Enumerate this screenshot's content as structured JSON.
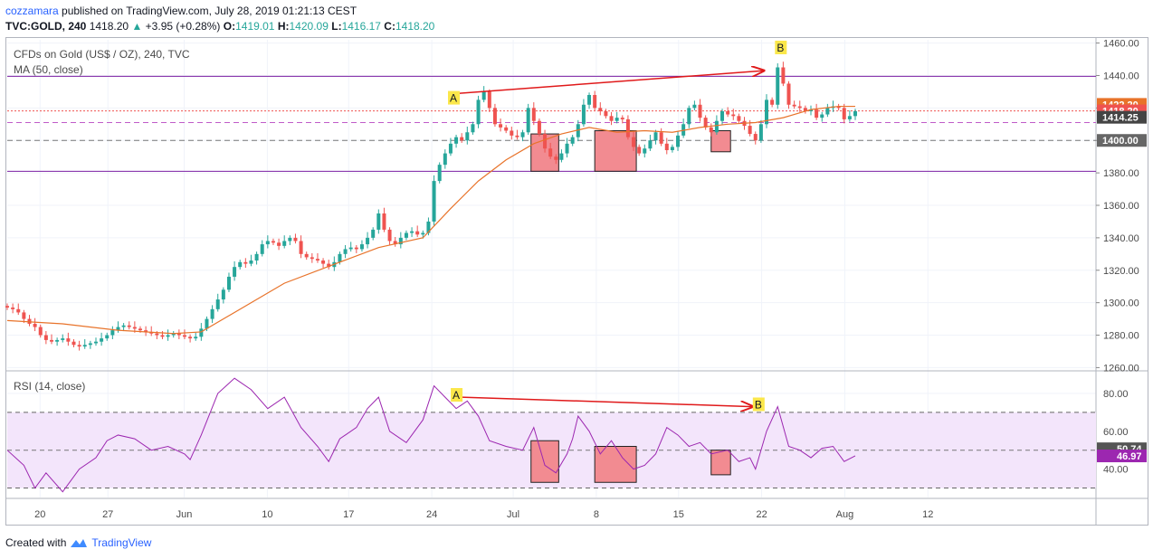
{
  "header": {
    "author": "cozzamara",
    "published_text": "published on TradingView.com, July 28, 2019 01:21:13 CEST",
    "symbol_line": "TVC:GOLD, 240",
    "last": "1418.20",
    "change": "+3.95 (+0.28%)",
    "o_label": "O:",
    "o": "1419.01",
    "h_label": "H:",
    "h": "1420.09",
    "l_label": "L:",
    "l": "1416.17",
    "c_label": "C:",
    "c": "1418.20"
  },
  "price_pane": {
    "title": "CFDs on Gold (US$ / OZ), 240, TVC",
    "indicator": "MA (50, close)"
  },
  "rsi_pane": {
    "title": "RSI (14, close)"
  },
  "footer": {
    "created_with": "Created with",
    "brand": "TradingView"
  },
  "colors": {
    "up": "#26a69a",
    "down": "#ef5350",
    "ma": "#e8732a",
    "rsi": "#9c27b0",
    "rsi_band": "#f3e5fb",
    "arrow": "#e0191a",
    "box_fill": "#f28b91",
    "label_bg": "#fbe74a",
    "purple_line": "#7b1fa2"
  },
  "chart_data": [
    {
      "type": "candlestick",
      "title": "CFDs on Gold (US$ / OZ), 240, TVC",
      "ylim": [
        1258,
        1462
      ],
      "y_ticks": [
        "1460.00",
        "1440.00",
        "1420.00",
        "1400.00",
        "1380.00",
        "1360.00",
        "1340.00",
        "1320.00",
        "1300.00",
        "1280.00",
        "1260.00"
      ],
      "x_ticks": [
        "20",
        "27",
        "Jun",
        "10",
        "17",
        "24",
        "Jul",
        "8",
        "15",
        "22",
        "Aug",
        "12"
      ],
      "price_labels": [
        {
          "value": 1422.2,
          "text": "1422.20",
          "color": "#e8732a"
        },
        {
          "value": 1418.2,
          "text": "1418.20",
          "color": "#ef5350"
        },
        {
          "value": 1414.25,
          "text": "1414.25",
          "color": "#444444"
        },
        {
          "value": 1400.0,
          "text": "1400.00",
          "color": "#666666"
        }
      ],
      "horizontal_lines": [
        1439.5,
        1381.0,
        1411.0,
        1400.0
      ],
      "close_series": [
        [
          0,
          1297
        ],
        [
          1,
          1296
        ],
        [
          2,
          1294
        ],
        [
          3,
          1290
        ],
        [
          4,
          1287
        ],
        [
          5,
          1285
        ],
        [
          6,
          1280
        ],
        [
          7,
          1277
        ],
        [
          8,
          1276
        ],
        [
          9,
          1277
        ],
        [
          10,
          1278
        ],
        [
          11,
          1276
        ],
        [
          12,
          1274
        ],
        [
          13,
          1273
        ],
        [
          14,
          1274
        ],
        [
          15,
          1275
        ],
        [
          16,
          1276
        ],
        [
          17,
          1278
        ],
        [
          18,
          1280
        ],
        [
          19,
          1283
        ],
        [
          20,
          1285
        ],
        [
          21,
          1286
        ],
        [
          22,
          1285
        ],
        [
          23,
          1284
        ],
        [
          24,
          1283
        ],
        [
          25,
          1282
        ],
        [
          26,
          1281
        ],
        [
          27,
          1280
        ],
        [
          28,
          1279
        ],
        [
          29,
          1280
        ],
        [
          30,
          1281
        ],
        [
          31,
          1280
        ],
        [
          32,
          1279
        ],
        [
          33,
          1278
        ],
        [
          34,
          1279
        ],
        [
          35,
          1284
        ],
        [
          36,
          1290
        ],
        [
          37,
          1296
        ],
        [
          38,
          1302
        ],
        [
          39,
          1308
        ],
        [
          40,
          1316
        ],
        [
          41,
          1322
        ],
        [
          42,
          1325
        ],
        [
          43,
          1324
        ],
        [
          44,
          1326
        ],
        [
          45,
          1330
        ],
        [
          46,
          1336
        ],
        [
          47,
          1338
        ],
        [
          48,
          1337
        ],
        [
          49,
          1335
        ],
        [
          50,
          1338
        ],
        [
          51,
          1340
        ],
        [
          52,
          1338
        ],
        [
          53,
          1330
        ],
        [
          54,
          1328
        ],
        [
          55,
          1327
        ],
        [
          56,
          1326
        ],
        [
          57,
          1324
        ],
        [
          58,
          1322
        ],
        [
          59,
          1325
        ],
        [
          60,
          1330
        ],
        [
          61,
          1333
        ],
        [
          62,
          1334
        ],
        [
          63,
          1333
        ],
        [
          64,
          1336
        ],
        [
          65,
          1340
        ],
        [
          66,
          1345
        ],
        [
          67,
          1355
        ],
        [
          68,
          1345
        ],
        [
          69,
          1338
        ],
        [
          70,
          1336
        ],
        [
          71,
          1340
        ],
        [
          72,
          1343
        ],
        [
          73,
          1344
        ],
        [
          74,
          1342
        ],
        [
          75,
          1343
        ],
        [
          76,
          1350
        ],
        [
          77,
          1375
        ],
        [
          78,
          1385
        ],
        [
          79,
          1392
        ],
        [
          80,
          1398
        ],
        [
          81,
          1402
        ],
        [
          82,
          1400
        ],
        [
          83,
          1405
        ],
        [
          84,
          1410
        ],
        [
          85,
          1425
        ],
        [
          86,
          1430
        ],
        [
          87,
          1420
        ],
        [
          88,
          1410
        ],
        [
          89,
          1408
        ],
        [
          90,
          1406
        ],
        [
          91,
          1403
        ],
        [
          92,
          1402
        ],
        [
          93,
          1405
        ],
        [
          94,
          1420
        ],
        [
          95,
          1412
        ],
        [
          96,
          1404
        ],
        [
          97,
          1395
        ],
        [
          98,
          1390
        ],
        [
          99,
          1388
        ],
        [
          100,
          1392
        ],
        [
          101,
          1398
        ],
        [
          102,
          1402
        ],
        [
          103,
          1410
        ],
        [
          104,
          1422
        ],
        [
          105,
          1428
        ],
        [
          106,
          1420
        ],
        [
          107,
          1418
        ],
        [
          108,
          1415
        ],
        [
          109,
          1412
        ],
        [
          110,
          1414
        ],
        [
          111,
          1413
        ],
        [
          112,
          1402
        ],
        [
          113,
          1396
        ],
        [
          114,
          1392
        ],
        [
          115,
          1395
        ],
        [
          116,
          1400
        ],
        [
          117,
          1405
        ],
        [
          118,
          1398
        ],
        [
          119,
          1394
        ],
        [
          120,
          1396
        ],
        [
          121,
          1403
        ],
        [
          122,
          1410
        ],
        [
          123,
          1420
        ],
        [
          124,
          1422
        ],
        [
          125,
          1414
        ],
        [
          126,
          1408
        ],
        [
          127,
          1405
        ],
        [
          128,
          1412
        ],
        [
          129,
          1418
        ],
        [
          130,
          1416
        ],
        [
          131,
          1415
        ],
        [
          132,
          1412
        ],
        [
          133,
          1409
        ],
        [
          134,
          1404
        ],
        [
          135,
          1400
        ],
        [
          136,
          1410
        ],
        [
          137,
          1425
        ],
        [
          138,
          1422
        ],
        [
          139,
          1445
        ],
        [
          140,
          1435
        ],
        [
          141,
          1422
        ],
        [
          142,
          1421
        ],
        [
          143,
          1420
        ],
        [
          144,
          1418
        ],
        [
          145,
          1419
        ],
        [
          146,
          1414
        ],
        [
          147,
          1416
        ],
        [
          148,
          1420
        ],
        [
          149,
          1421
        ],
        [
          150,
          1420
        ],
        [
          151,
          1413
        ],
        [
          152,
          1415
        ],
        [
          153,
          1418
        ]
      ],
      "ma_series": [
        [
          0,
          1289
        ],
        [
          10,
          1287
        ],
        [
          20,
          1283
        ],
        [
          30,
          1281
        ],
        [
          35,
          1282
        ],
        [
          40,
          1292
        ],
        [
          50,
          1312
        ],
        [
          60,
          1325
        ],
        [
          67,
          1334
        ],
        [
          75,
          1340
        ],
        [
          80,
          1358
        ],
        [
          85,
          1375
        ],
        [
          90,
          1388
        ],
        [
          95,
          1398
        ],
        [
          100,
          1404
        ],
        [
          105,
          1408
        ],
        [
          110,
          1405
        ],
        [
          115,
          1406
        ],
        [
          120,
          1405
        ],
        [
          125,
          1408
        ],
        [
          130,
          1410
        ],
        [
          135,
          1411
        ],
        [
          140,
          1414
        ],
        [
          145,
          1419
        ],
        [
          150,
          1421
        ],
        [
          153,
          1421
        ]
      ],
      "annotations": [
        {
          "text": "A",
          "x": 80.5,
          "y": 1426
        },
        {
          "text": "B",
          "x": 139.5,
          "y": 1457
        }
      ]
    },
    {
      "type": "line",
      "title": "RSI (14, close)",
      "ylim": [
        25,
        90
      ],
      "y_ticks": [
        "80.00",
        "60.00",
        "40.00"
      ],
      "bands": [
        70,
        30
      ],
      "midline": 50,
      "value_labels": [
        {
          "value": 50.74,
          "text": "50.74"
        },
        {
          "value": 46.97,
          "text": "46.97"
        }
      ],
      "series": [
        [
          0,
          50
        ],
        [
          3,
          42
        ],
        [
          5,
          30
        ],
        [
          7,
          38
        ],
        [
          10,
          28
        ],
        [
          13,
          40
        ],
        [
          16,
          46
        ],
        [
          18,
          55
        ],
        [
          20,
          58
        ],
        [
          23,
          56
        ],
        [
          26,
          50
        ],
        [
          29,
          52
        ],
        [
          32,
          48
        ],
        [
          33,
          45
        ],
        [
          35,
          58
        ],
        [
          38,
          80
        ],
        [
          41,
          88
        ],
        [
          44,
          82
        ],
        [
          47,
          72
        ],
        [
          50,
          78
        ],
        [
          53,
          62
        ],
        [
          56,
          52
        ],
        [
          58,
          44
        ],
        [
          60,
          56
        ],
        [
          63,
          62
        ],
        [
          65,
          72
        ],
        [
          67,
          78
        ],
        [
          69,
          60
        ],
        [
          72,
          54
        ],
        [
          75,
          66
        ],
        [
          77,
          84
        ],
        [
          79,
          78
        ],
        [
          81,
          72
        ],
        [
          83,
          76
        ],
        [
          85,
          68
        ],
        [
          87,
          55
        ],
        [
          90,
          52
        ],
        [
          93,
          50
        ],
        [
          95,
          62
        ],
        [
          97,
          42
        ],
        [
          99,
          38
        ],
        [
          101,
          48
        ],
        [
          102,
          56
        ],
        [
          103,
          68
        ],
        [
          105,
          60
        ],
        [
          107,
          48
        ],
        [
          109,
          55
        ],
        [
          111,
          46
        ],
        [
          113,
          40
        ],
        [
          115,
          42
        ],
        [
          117,
          48
        ],
        [
          119,
          62
        ],
        [
          121,
          58
        ],
        [
          123,
          52
        ],
        [
          125,
          54
        ],
        [
          127,
          48
        ],
        [
          130,
          50
        ],
        [
          132,
          44
        ],
        [
          134,
          46
        ],
        [
          135,
          40
        ],
        [
          137,
          60
        ],
        [
          139,
          73
        ],
        [
          141,
          52
        ],
        [
          143,
          50
        ],
        [
          145,
          46
        ],
        [
          147,
          51
        ],
        [
          149,
          52
        ],
        [
          151,
          44
        ],
        [
          153,
          47
        ]
      ],
      "annotations": [
        {
          "text": "A",
          "x": 81,
          "y": 79
        },
        {
          "text": "B",
          "x": 135.5,
          "y": 74
        }
      ]
    }
  ]
}
